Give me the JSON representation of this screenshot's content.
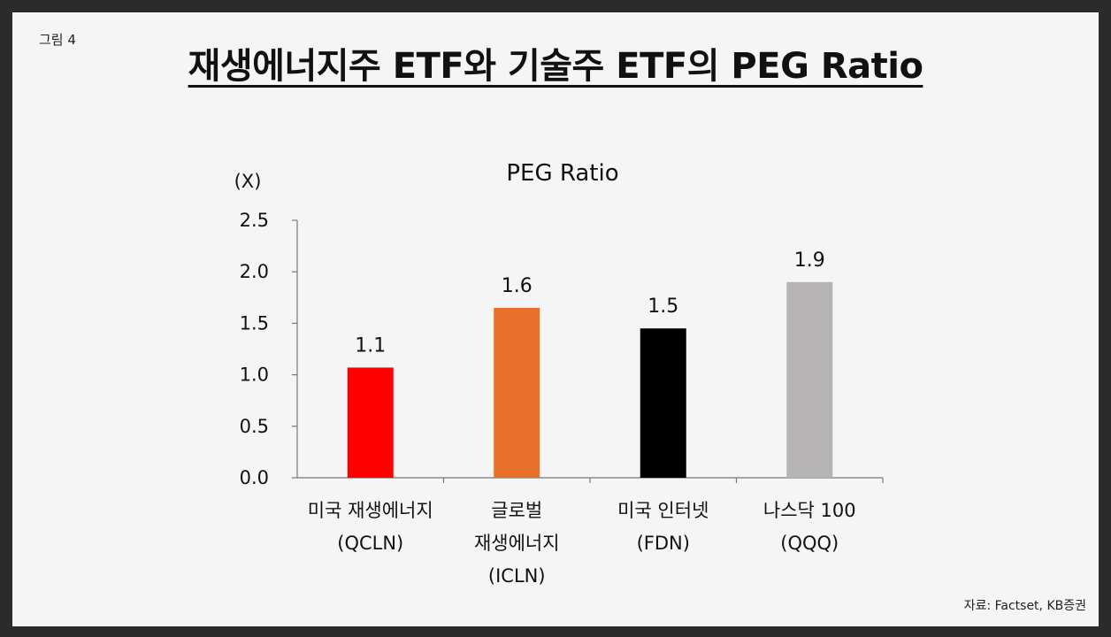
{
  "slide": {
    "figure_label": "그림 4",
    "title": "재생에너지주 ETF와 기술주 ETF의 PEG Ratio",
    "source": "자료: Factset, KB증권"
  },
  "chart_data": {
    "type": "bar",
    "title": "PEG Ratio",
    "ylabel": "(X)",
    "xlabel": "",
    "ylim": [
      0,
      2.5
    ],
    "yticks": [
      "0.0",
      "0.5",
      "1.0",
      "1.5",
      "2.0",
      "2.5"
    ],
    "categories": [
      [
        "미국 재생에너지",
        "(QCLN)"
      ],
      [
        "글로벌",
        "재생에너지",
        "(ICLN)"
      ],
      [
        "미국 인터넷",
        "(FDN)"
      ],
      [
        "나스닥 100",
        "(QQQ)"
      ]
    ],
    "values": [
      1.07,
      1.65,
      1.45,
      1.9
    ],
    "data_labels": [
      "1.1",
      "1.6",
      "1.5",
      "1.9"
    ],
    "colors": [
      "#ff0000",
      "#e8702a",
      "#000000",
      "#b5b3b3"
    ],
    "grid": false,
    "legend": "none"
  }
}
